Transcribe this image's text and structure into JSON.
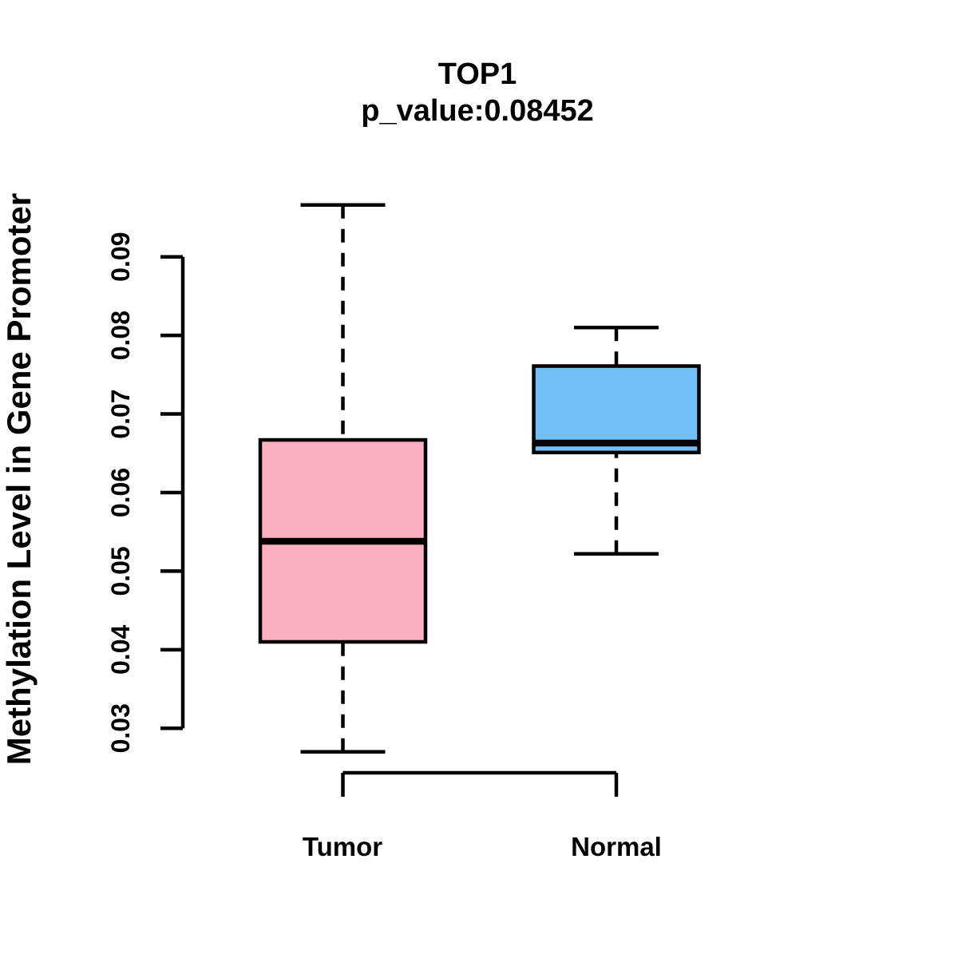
{
  "chart_data": {
    "type": "boxplot",
    "title": "TOP1",
    "subtitle": "p_value:0.08452",
    "ylabel": "Methylation Level in Gene Promoter",
    "xlabel": "",
    "categories": [
      "Tumor",
      "Normal"
    ],
    "series": [
      {
        "name": "Tumor",
        "fill_color": "#FDB0C0",
        "whisker_low": 0.027,
        "q1": 0.041,
        "median": 0.0538,
        "q3": 0.0667,
        "whisker_high": 0.0966
      },
      {
        "name": "Normal",
        "fill_color": "#74BEF8",
        "whisker_low": 0.0522,
        "q1": 0.0651,
        "median": 0.0663,
        "q3": 0.0761,
        "whisker_high": 0.081
      }
    ],
    "y_axis": {
      "tick_values": [
        0.03,
        0.04,
        0.05,
        0.06,
        0.07,
        0.08,
        0.09
      ],
      "tick_labels": [
        "0.03",
        "0.04",
        "0.05",
        "0.06",
        "0.07",
        "0.08",
        "0.09"
      ],
      "range_shown": [
        0.03,
        0.09
      ],
      "grid": false
    },
    "line_color": "#000000",
    "background_color": "#FFFFFF",
    "legend": "none"
  }
}
